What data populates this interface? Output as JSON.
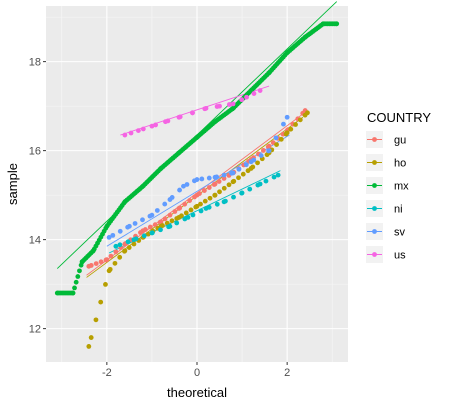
{
  "chart_data": {
    "type": "scatter",
    "xlabel": "theoretical",
    "ylabel": "sample",
    "xlim": [
      -3.35,
      3.35
    ],
    "ylim": [
      11.25,
      19.25
    ],
    "x_ticks": [
      -2,
      0,
      2
    ],
    "x_tick_labels": [
      "-2",
      "0",
      "2"
    ],
    "y_ticks": [
      12,
      14,
      16,
      18
    ],
    "y_tick_labels": [
      "12",
      "14",
      "16",
      "18"
    ],
    "grid": true,
    "legend_placement": "right",
    "legend_title": "COUNTRY",
    "series": [
      {
        "name": "gu",
        "color": "#F8766D",
        "line": {
          "x1": -2.45,
          "y1": 13.2,
          "x2": 2.45,
          "y2": 16.9
        },
        "anchors": [
          [
            -2.4,
            13.4
          ],
          [
            -2.0,
            13.55
          ],
          [
            -1.6,
            13.9
          ],
          [
            -1.2,
            14.2
          ],
          [
            -0.8,
            14.4
          ],
          [
            -0.4,
            14.7
          ],
          [
            0.0,
            15.0
          ],
          [
            0.4,
            15.25
          ],
          [
            0.8,
            15.5
          ],
          [
            1.2,
            15.8
          ],
          [
            1.6,
            16.1
          ],
          [
            2.0,
            16.45
          ],
          [
            2.4,
            16.9
          ]
        ],
        "n": 44
      },
      {
        "name": "ho",
        "color": "#B79F00",
        "line": {
          "x1": -2.45,
          "y1": 13.15,
          "x2": 2.35,
          "y2": 16.75
        },
        "anchors": [
          [
            -2.4,
            11.6
          ],
          [
            -1.95,
            13.3
          ],
          [
            -1.6,
            13.75
          ],
          [
            -1.2,
            14.05
          ],
          [
            -0.8,
            14.3
          ],
          [
            -0.4,
            14.5
          ],
          [
            0.0,
            14.75
          ],
          [
            0.4,
            15.0
          ],
          [
            0.8,
            15.3
          ],
          [
            1.2,
            15.6
          ],
          [
            1.6,
            15.95
          ],
          [
            2.0,
            16.4
          ],
          [
            2.45,
            16.85
          ]
        ],
        "n": 46
      },
      {
        "name": "mx",
        "color": "#00BA38",
        "line": {
          "x1": -3.1,
          "y1": 13.35,
          "x2": 3.1,
          "y2": 19.35
        },
        "anchors": [
          [
            -3.1,
            12.8
          ],
          [
            -2.75,
            12.8
          ],
          [
            -2.55,
            13.5
          ],
          [
            -2.3,
            13.75
          ],
          [
            -2.0,
            14.3
          ],
          [
            -1.6,
            14.85
          ],
          [
            -1.2,
            15.2
          ],
          [
            -0.8,
            15.6
          ],
          [
            -0.4,
            15.95
          ],
          [
            0.0,
            16.3
          ],
          [
            0.4,
            16.65
          ],
          [
            0.8,
            16.95
          ],
          [
            1.2,
            17.35
          ],
          [
            1.6,
            17.75
          ],
          [
            2.0,
            18.2
          ],
          [
            2.4,
            18.55
          ],
          [
            2.8,
            18.85
          ],
          [
            3.1,
            18.85
          ]
        ],
        "n": 170
      },
      {
        "name": "ni",
        "color": "#00BFC4",
        "line": {
          "x1": -1.95,
          "y1": 13.7,
          "x2": 1.85,
          "y2": 15.55
        },
        "anchors": [
          [
            -1.8,
            13.85
          ],
          [
            -1.4,
            14.0
          ],
          [
            -1.0,
            14.15
          ],
          [
            -0.6,
            14.3
          ],
          [
            -0.2,
            14.5
          ],
          [
            0.2,
            14.7
          ],
          [
            0.6,
            14.85
          ],
          [
            1.0,
            15.05
          ],
          [
            1.4,
            15.25
          ],
          [
            1.8,
            15.45
          ]
        ],
        "n": 20
      },
      {
        "name": "sv",
        "color": "#619CFF",
        "line": {
          "x1": -2.0,
          "y1": 13.85,
          "x2": 2.05,
          "y2": 16.35
        },
        "anchors": [
          [
            -1.95,
            14.05
          ],
          [
            -1.5,
            14.3
          ],
          [
            -1.0,
            14.55
          ],
          [
            -0.6,
            14.9
          ],
          [
            -0.3,
            15.2
          ],
          [
            0.0,
            15.35
          ],
          [
            0.4,
            15.4
          ],
          [
            0.8,
            15.5
          ],
          [
            1.2,
            15.75
          ],
          [
            1.6,
            16.0
          ],
          [
            2.0,
            16.75
          ]
        ],
        "n": 24
      },
      {
        "name": "us",
        "color": "#F564E3",
        "line": {
          "x1": -1.7,
          "y1": 16.35,
          "x2": 1.6,
          "y2": 17.45
        },
        "anchors": [
          [
            -1.6,
            16.35
          ],
          [
            -1.3,
            16.45
          ],
          [
            -1.0,
            16.55
          ],
          [
            -0.7,
            16.65
          ],
          [
            -0.4,
            16.75
          ],
          [
            -0.1,
            16.85
          ],
          [
            0.2,
            16.95
          ],
          [
            0.5,
            17.0
          ],
          [
            0.8,
            17.05
          ],
          [
            1.1,
            17.2
          ],
          [
            1.4,
            17.35
          ]
        ],
        "n": 11
      }
    ]
  }
}
